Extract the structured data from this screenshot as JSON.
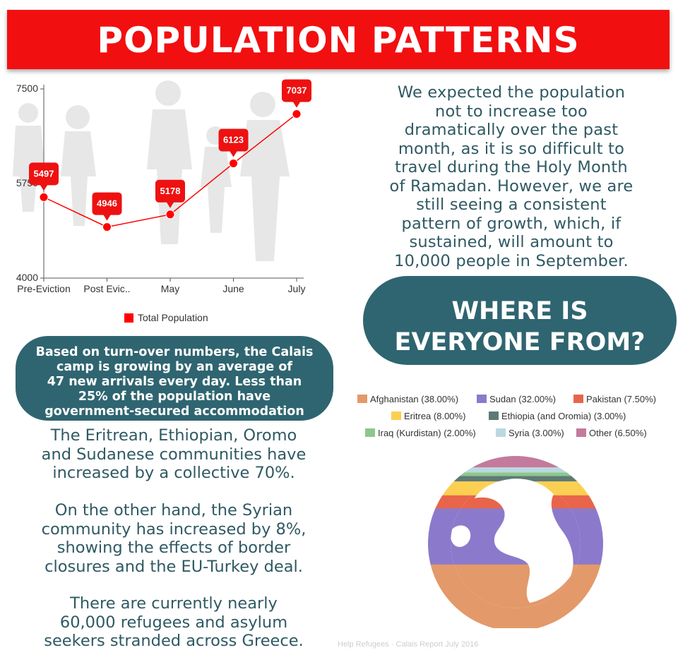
{
  "banner": {
    "title": "POPULATION PATTERNS"
  },
  "chart_data": [
    {
      "type": "line",
      "categories": [
        "Pre-Eviction",
        "Post Evic..",
        "May",
        "June",
        "July"
      ],
      "series": [
        {
          "name": "Total Population",
          "values": [
            5497,
            4946,
            5178,
            6123,
            7037
          ]
        }
      ],
      "y_ticks": [
        4000,
        5750,
        7500
      ],
      "ylim": [
        4000,
        7500
      ],
      "data_labels": [
        "5497",
        "4946",
        "5178",
        "6123",
        "7037"
      ],
      "legend": "bottom",
      "grid": false,
      "color": "#ff0000"
    },
    {
      "type": "pie",
      "legend_entries": [
        {
          "label": "Afghanistan (38.00%)",
          "value": 38.0,
          "color": "#e3996a"
        },
        {
          "label": "Sudan (32.00%)",
          "value": 32.0,
          "color": "#8b7acb"
        },
        {
          "label": "Pakistan (7.50%)",
          "value": 7.5,
          "color": "#e8654b"
        },
        {
          "label": "Eritrea (8.00%)",
          "value": 8.0,
          "color": "#fbcf52"
        },
        {
          "label": "Ethiopia (and Oromia) (3.00%)",
          "value": 3.0,
          "color": "#5e7a76"
        },
        {
          "label": "Iraq (Kurdistan) (2.00%)",
          "value": 2.0,
          "color": "#8dc78a"
        },
        {
          "label": "Syria (3.00%)",
          "value": 3.0,
          "color": "#bad8df"
        },
        {
          "label": "Other (6.50%)",
          "value": 6.5,
          "color": "#c47a9c"
        }
      ],
      "legend": "top",
      "style": "globe"
    }
  ],
  "intro": {
    "lines": [
      "We expected the population",
      "not to increase too",
      "dramatically over the past",
      "month, as it is so difficult to",
      "travel during the Holy Month",
      "of Ramadan. However, we are",
      "still seeing a consistent",
      "pattern of growth, which, if",
      "sustained, will amount to",
      "10,000 people in September."
    ]
  },
  "where": {
    "line1": "WHERE IS",
    "line2": "EVERYONE FROM?"
  },
  "growth": {
    "lines": [
      "Based on turn-over numbers, the Calais",
      "camp is growing by an average of",
      "47 new arrivals every day. Less than",
      "25% of the population have",
      "government-secured accommodation"
    ]
  },
  "para1": {
    "lines": [
      "The Eritrean, Ethiopian, Oromo",
      "and Sudanese communities have",
      "increased by a collective 70%."
    ]
  },
  "para2": {
    "lines": [
      "On the other hand, the Syrian",
      "community has increased by 8%,",
      "showing the effects of border",
      "closures and the EU-Turkey deal."
    ]
  },
  "para3": {
    "lines": [
      "There are currently nearly",
      "60,000 refugees and asylum",
      "seekers stranded across Greece."
    ]
  },
  "footer": {
    "note": "Help Refugees · Calais Report July 2016"
  },
  "colors": {
    "banner": "#f20f10",
    "pill": "#2f6570",
    "text": "#2f5963",
    "line": "#ff0000"
  }
}
